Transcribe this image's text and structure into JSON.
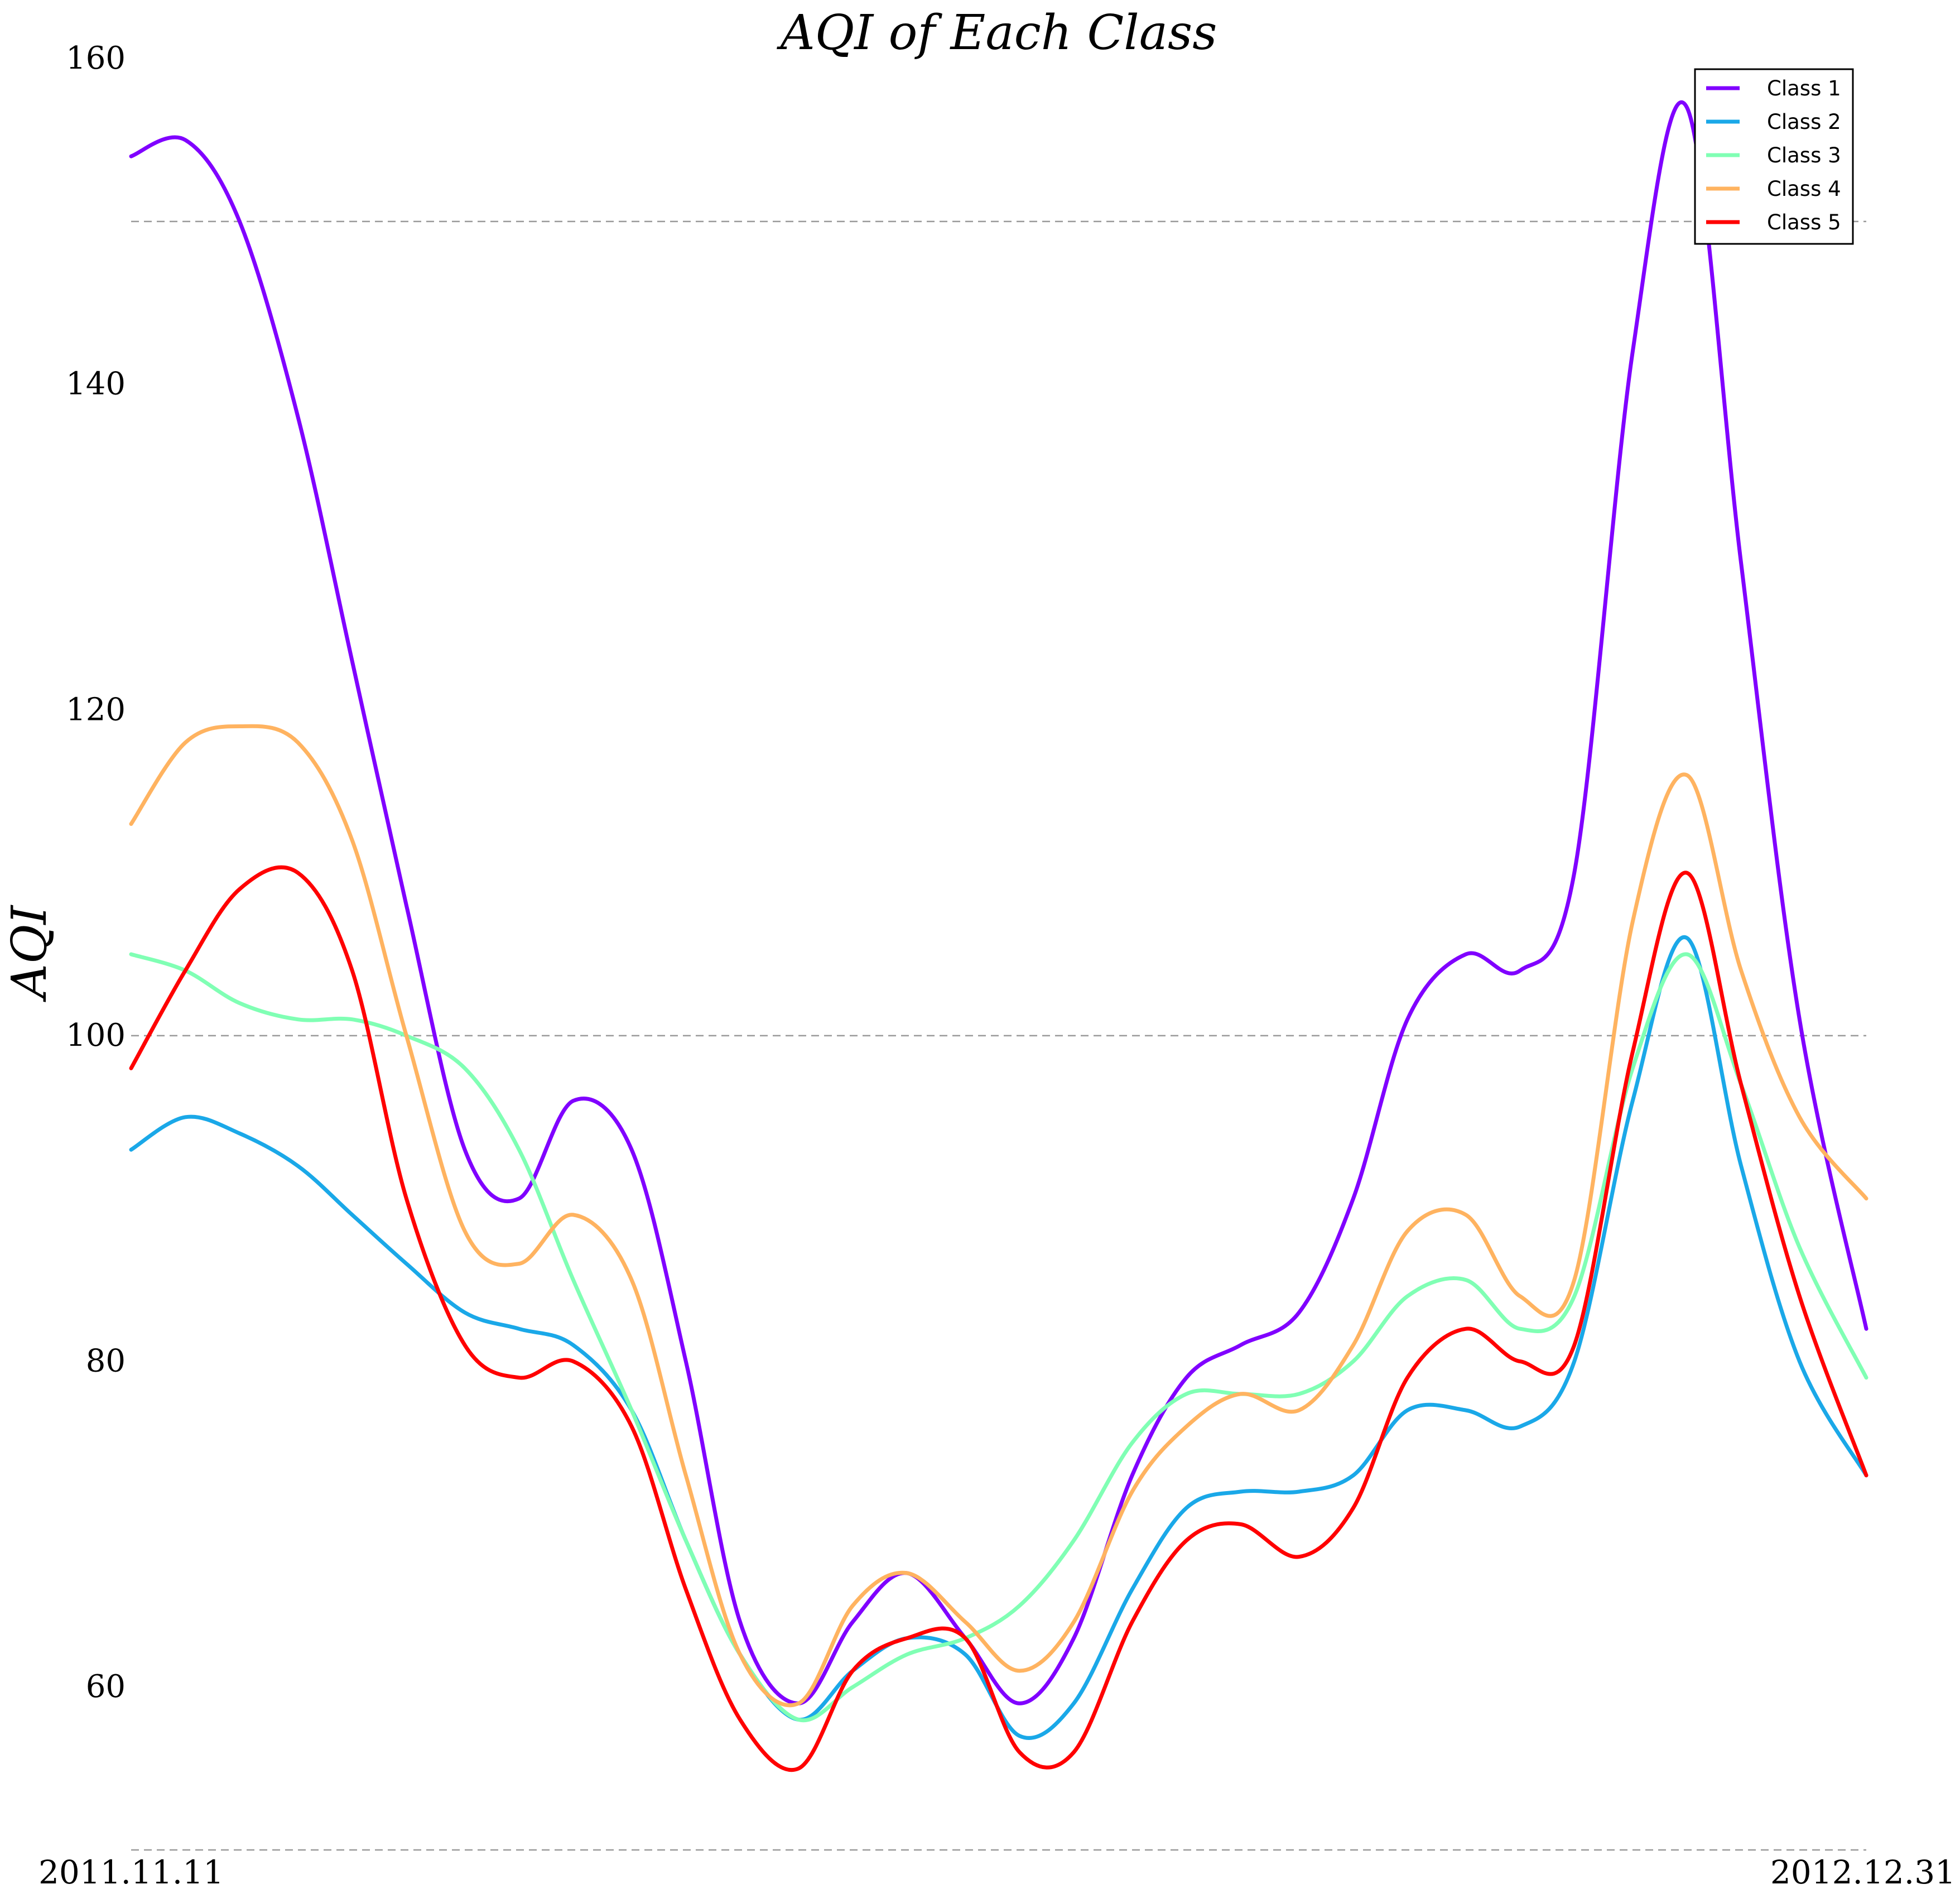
{
  "chart_data": {
    "type": "line",
    "title": "AQI of Each Class",
    "xlabel": "",
    "ylabel": "AQI",
    "ylim": [
      50,
      160
    ],
    "yticks": [
      60,
      80,
      100,
      120,
      140,
      160
    ],
    "gridlines_y": [
      50,
      100,
      150
    ],
    "grid": "dashed horizontal lines at 50, 100, 150",
    "legend_position": "top-right",
    "x_tick_labels": [
      "2011.11.11",
      "2012.12.31"
    ],
    "x_start": "2011-11-11",
    "x_end": "2012-12-31",
    "x": [
      "2011-11-11",
      "2011-11-24",
      "2011-12-07",
      "2011-12-21",
      "2012-01-03",
      "2012-01-16",
      "2012-01-30",
      "2012-02-12",
      "2012-02-25",
      "2012-03-10",
      "2012-03-23",
      "2012-04-05",
      "2012-04-19",
      "2012-05-02",
      "2012-05-15",
      "2012-05-29",
      "2012-06-11",
      "2012-06-24",
      "2012-07-08",
      "2012-07-21",
      "2012-08-03",
      "2012-08-17",
      "2012-08-30",
      "2012-09-12",
      "2012-09-26",
      "2012-10-09",
      "2012-10-22",
      "2012-11-05",
      "2012-11-18",
      "2012-12-01",
      "2012-12-15",
      "2012-12-31"
    ],
    "series": [
      {
        "name": "Class 1",
        "color": "#8000ff",
        "values": [
          154,
          155,
          150,
          138,
          123,
          108,
          93,
          90,
          96,
          93,
          80,
          64,
          59,
          64,
          67,
          63,
          59,
          63,
          73,
          79,
          81,
          83,
          90,
          101,
          105,
          104,
          110,
          142,
          157,
          129,
          101,
          82
        ]
      },
      {
        "name": "Class 2",
        "color": "#1aa8e8",
        "values": [
          93,
          95,
          94,
          92,
          89,
          86,
          83,
          82,
          81,
          77,
          69,
          62,
          58,
          61,
          63,
          62,
          57,
          59,
          66,
          71,
          72,
          72,
          73,
          77,
          77,
          76,
          80,
          96,
          106,
          92,
          80,
          73
        ]
      },
      {
        "name": "Class 3",
        "color": "#80ffb4",
        "values": [
          105,
          104,
          102,
          101,
          101,
          100,
          98,
          93,
          85,
          77,
          69,
          62,
          58,
          60,
          62,
          63,
          65,
          69,
          75,
          78,
          78,
          78,
          80,
          84,
          85,
          82,
          84,
          98,
          105,
          97,
          87,
          79
        ]
      },
      {
        "name": "Class 4",
        "color": "#ffb360",
        "values": [
          113,
          118,
          119,
          118,
          112,
          100,
          88,
          86,
          89,
          85,
          73,
          62,
          59,
          65,
          67,
          64,
          61,
          64,
          72,
          76,
          78,
          77,
          81,
          88,
          89,
          84,
          85,
          107,
          116,
          104,
          95,
          90
        ]
      },
      {
        "name": "Class 5",
        "color": "#ff0000",
        "values": [
          98,
          104,
          109,
          110,
          104,
          90,
          81,
          79,
          80,
          76,
          66,
          58,
          55,
          61,
          63,
          63,
          56,
          56,
          64,
          69,
          70,
          68,
          71,
          79,
          82,
          80,
          81,
          99,
          110,
          97,
          84,
          73
        ]
      }
    ]
  }
}
